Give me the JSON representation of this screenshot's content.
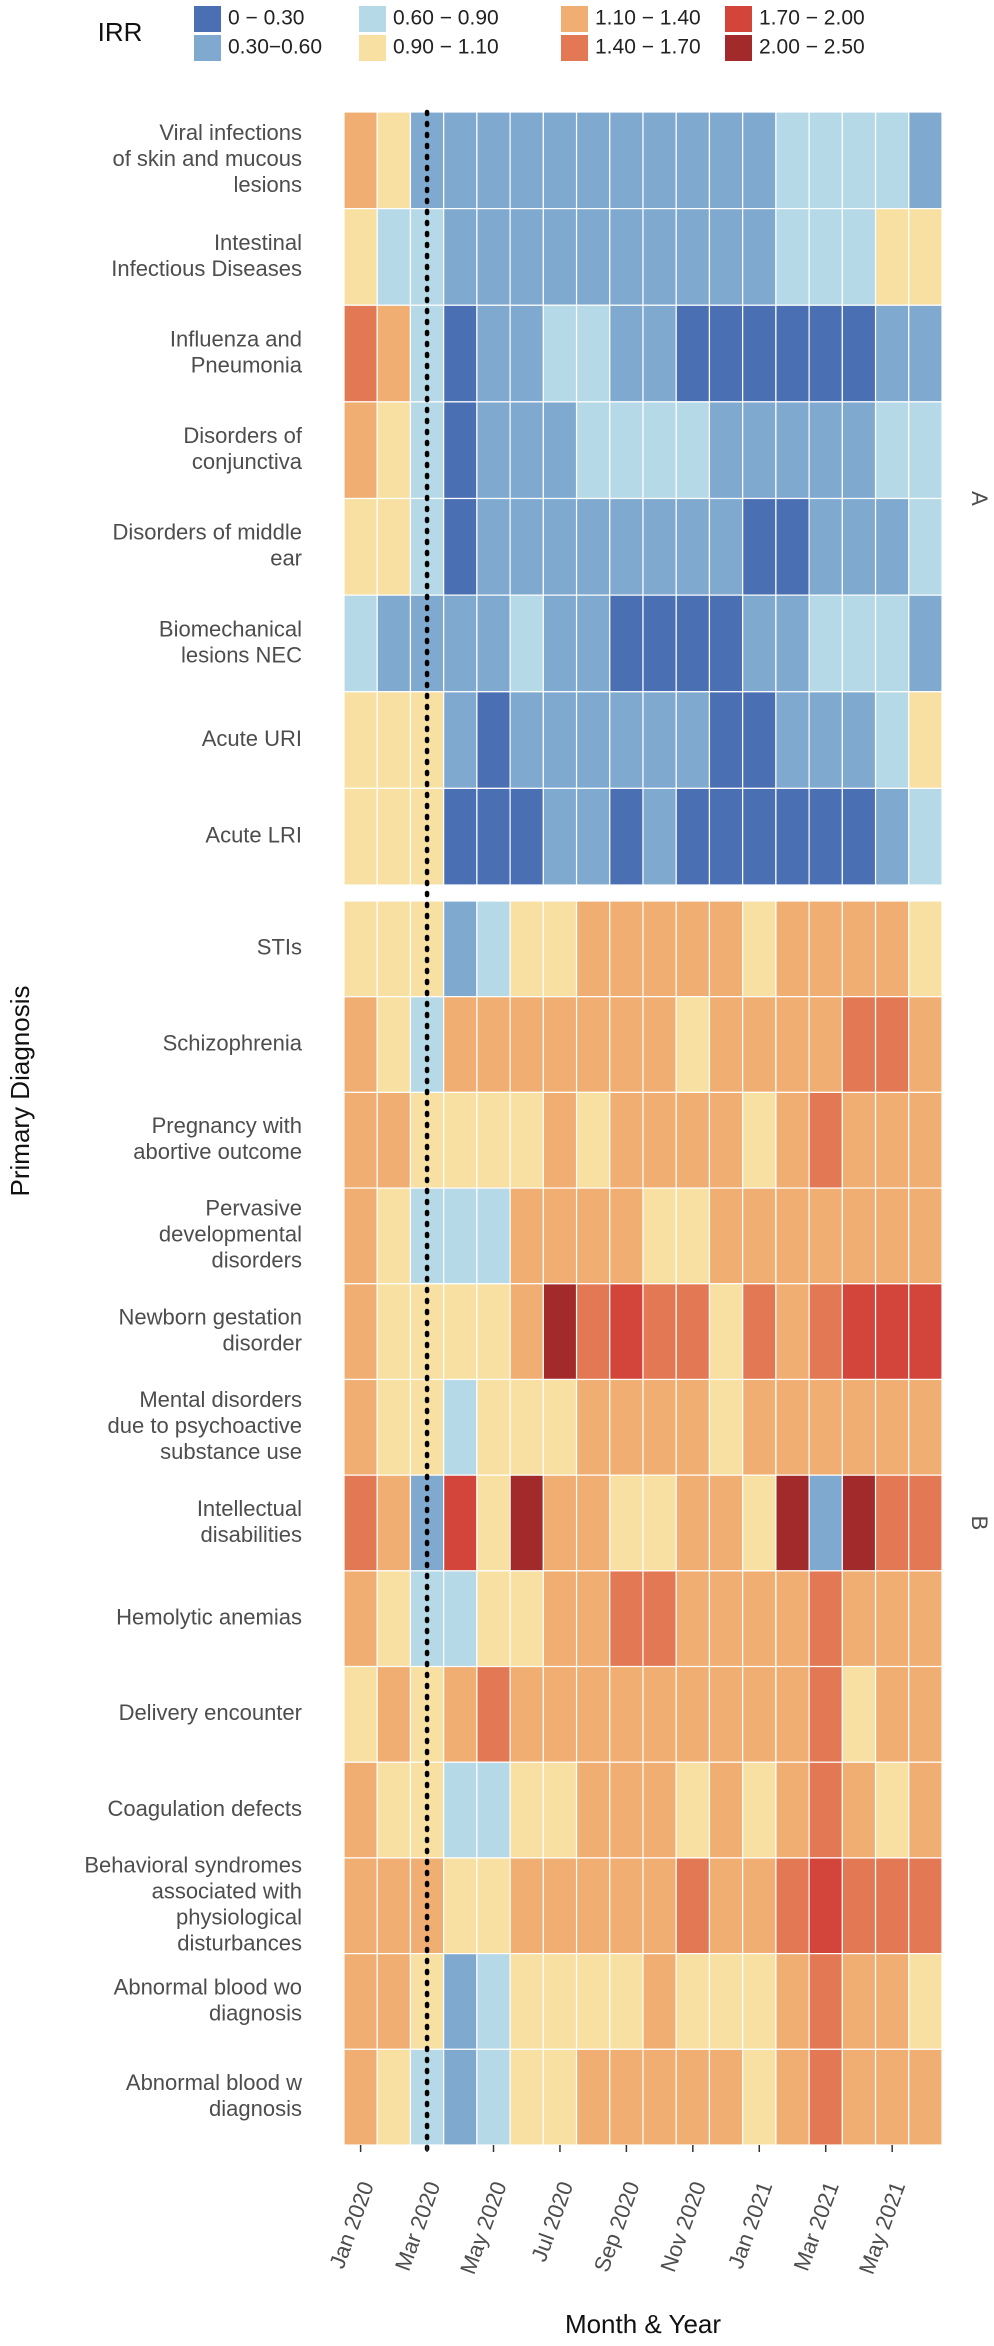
{
  "chart_data": {
    "type": "heatmap",
    "x_label": "Month & Year",
    "y_label": "Primary Diagnosis",
    "legend_title": "IRR",
    "legend": [
      {
        "label": "0 − 0.30",
        "range": [
          0,
          0.3
        ],
        "color": "#4a6fb3"
      },
      {
        "label": "0.30−0.60",
        "range": [
          0.3,
          0.6
        ],
        "color": "#80a9cf"
      },
      {
        "label": "0.60 − 0.90",
        "range": [
          0.6,
          0.9
        ],
        "color": "#b6d9e8"
      },
      {
        "label": "0.90 − 1.10",
        "range": [
          0.9,
          1.1
        ],
        "color": "#f7e0a2"
      },
      {
        "label": "1.10 − 1.40",
        "range": [
          1.1,
          1.4
        ],
        "color": "#f0ae72"
      },
      {
        "label": "1.40 − 1.70",
        "range": [
          1.4,
          1.7
        ],
        "color": "#e37855"
      },
      {
        "label": "1.70 − 2.00",
        "range": [
          1.7,
          2.0
        ],
        "color": "#d3443a"
      },
      {
        "label": "2.00 − 2.50",
        "range": [
          2.0,
          2.5
        ],
        "color": "#a22a2b"
      }
    ],
    "categories": [
      "Jan 2020",
      null,
      "Mar 2020",
      null,
      "May 2020",
      null,
      "Jul 2020",
      null,
      "Sep 2020",
      null,
      "Nov 2020",
      null,
      "Jan 2021",
      null,
      "Mar 2021",
      null,
      "May 2021",
      null
    ],
    "vline_category_index": 2,
    "panels": [
      {
        "strip": "A",
        "rows": [
          {
            "label": [
              "Viral infections",
              "of skin and mucous",
              "lesions"
            ],
            "values": [
              1.25,
              1.0,
              0.45,
              0.45,
              0.45,
              0.45,
              0.45,
              0.45,
              0.45,
              0.45,
              0.45,
              0.45,
              0.45,
              0.75,
              0.75,
              0.75,
              0.75,
              0.45
            ]
          },
          {
            "label": [
              "Intestinal",
              "Infectious Diseases"
            ],
            "values": [
              1.0,
              0.75,
              0.75,
              0.45,
              0.45,
              0.45,
              0.45,
              0.45,
              0.45,
              0.45,
              0.45,
              0.45,
              0.45,
              0.75,
              0.75,
              0.75,
              1.0,
              1.0
            ]
          },
          {
            "label": [
              "Influenza and",
              "Pneumonia"
            ],
            "values": [
              1.55,
              1.25,
              0.75,
              0.15,
              0.45,
              0.45,
              0.75,
              0.75,
              0.45,
              0.45,
              0.15,
              0.15,
              0.15,
              0.15,
              0.15,
              0.15,
              0.45,
              0.45
            ]
          },
          {
            "label": [
              "Disorders of",
              "conjunctiva"
            ],
            "values": [
              1.25,
              1.0,
              0.75,
              0.15,
              0.45,
              0.45,
              0.45,
              0.75,
              0.75,
              0.75,
              0.75,
              0.45,
              0.45,
              0.45,
              0.45,
              0.45,
              0.75,
              0.75
            ]
          },
          {
            "label": [
              "Disorders of middle",
              "ear"
            ],
            "values": [
              1.0,
              1.0,
              0.75,
              0.15,
              0.45,
              0.45,
              0.45,
              0.45,
              0.45,
              0.45,
              0.45,
              0.45,
              0.15,
              0.15,
              0.45,
              0.45,
              0.45,
              0.75
            ]
          },
          {
            "label": [
              "Biomechanical",
              "lesions NEC"
            ],
            "values": [
              0.75,
              0.45,
              0.45,
              0.45,
              0.45,
              0.75,
              0.45,
              0.45,
              0.15,
              0.15,
              0.15,
              0.15,
              0.45,
              0.45,
              0.75,
              0.75,
              0.75,
              0.45
            ]
          },
          {
            "label": [
              "Acute URI"
            ],
            "values": [
              1.0,
              1.0,
              1.0,
              0.45,
              0.15,
              0.45,
              0.45,
              0.45,
              0.45,
              0.45,
              0.45,
              0.15,
              0.15,
              0.45,
              0.45,
              0.45,
              0.75,
              1.0
            ]
          },
          {
            "label": [
              "Acute LRI"
            ],
            "values": [
              1.0,
              1.0,
              1.0,
              0.15,
              0.15,
              0.15,
              0.45,
              0.45,
              0.15,
              0.45,
              0.15,
              0.15,
              0.15,
              0.15,
              0.15,
              0.15,
              0.45,
              0.75
            ]
          }
        ]
      },
      {
        "strip": "B",
        "rows": [
          {
            "label": [
              "STIs"
            ],
            "values": [
              1.0,
              1.0,
              1.0,
              0.45,
              0.75,
              1.0,
              1.0,
              1.25,
              1.25,
              1.25,
              1.25,
              1.25,
              1.0,
              1.25,
              1.25,
              1.25,
              1.25,
              1.0
            ]
          },
          {
            "label": [
              "Schizophrenia"
            ],
            "values": [
              1.25,
              1.0,
              0.75,
              1.25,
              1.25,
              1.25,
              1.25,
              1.25,
              1.25,
              1.25,
              1.0,
              1.25,
              1.25,
              1.25,
              1.25,
              1.55,
              1.55,
              1.25
            ]
          },
          {
            "label": [
              "Pregnancy with",
              "abortive outcome"
            ],
            "values": [
              1.25,
              1.25,
              1.0,
              1.0,
              1.0,
              1.0,
              1.25,
              1.0,
              1.25,
              1.25,
              1.25,
              1.25,
              1.0,
              1.25,
              1.55,
              1.25,
              1.25,
              1.25
            ]
          },
          {
            "label": [
              "Pervasive",
              "developmental",
              "disorders"
            ],
            "values": [
              1.25,
              1.0,
              0.75,
              0.75,
              0.75,
              1.25,
              1.25,
              1.25,
              1.25,
              1.0,
              1.0,
              1.25,
              1.25,
              1.25,
              1.25,
              1.25,
              1.25,
              1.25
            ]
          },
          {
            "label": [
              "Newborn gestation",
              "disorder"
            ],
            "values": [
              1.25,
              1.0,
              1.0,
              1.0,
              1.0,
              1.25,
              2.25,
              1.55,
              1.85,
              1.55,
              1.55,
              1.0,
              1.55,
              1.25,
              1.55,
              1.85,
              1.85,
              1.85
            ]
          },
          {
            "label": [
              "Mental disorders",
              "due to psychoactive",
              "substance use"
            ],
            "values": [
              1.25,
              1.0,
              1.0,
              0.75,
              1.0,
              1.0,
              1.0,
              1.25,
              1.25,
              1.25,
              1.25,
              1.0,
              1.25,
              1.25,
              1.25,
              1.25,
              1.25,
              1.25
            ]
          },
          {
            "label": [
              "Intellectual",
              "disabilities"
            ],
            "values": [
              1.55,
              1.25,
              0.45,
              1.85,
              1.0,
              2.25,
              1.25,
              1.25,
              1.0,
              1.0,
              1.25,
              1.25,
              1.0,
              2.25,
              0.45,
              2.25,
              1.55,
              1.55
            ]
          },
          {
            "label": [
              "Hemolytic anemias"
            ],
            "values": [
              1.25,
              1.0,
              0.75,
              0.75,
              1.0,
              1.0,
              1.25,
              1.25,
              1.55,
              1.55,
              1.25,
              1.25,
              1.25,
              1.25,
              1.55,
              1.25,
              1.25,
              1.25
            ]
          },
          {
            "label": [
              "Delivery encounter"
            ],
            "values": [
              1.0,
              1.25,
              1.0,
              1.25,
              1.55,
              1.25,
              1.25,
              1.25,
              1.25,
              1.25,
              1.25,
              1.25,
              1.25,
              1.25,
              1.55,
              1.0,
              1.25,
              1.25
            ]
          },
          {
            "label": [
              "Coagulation defects"
            ],
            "values": [
              1.25,
              1.0,
              1.0,
              0.75,
              0.75,
              1.0,
              1.0,
              1.25,
              1.25,
              1.25,
              1.0,
              1.25,
              1.0,
              1.25,
              1.55,
              1.25,
              1.0,
              1.25
            ]
          },
          {
            "label": [
              "Behavioral syndromes",
              "associated with",
              "physiological",
              "disturbances"
            ],
            "values": [
              1.25,
              1.25,
              1.25,
              1.0,
              1.0,
              1.25,
              1.25,
              1.25,
              1.25,
              1.25,
              1.55,
              1.25,
              1.25,
              1.55,
              1.85,
              1.55,
              1.55,
              1.55
            ]
          },
          {
            "label": [
              "Abnormal blood wo",
              "diagnosis"
            ],
            "values": [
              1.25,
              1.25,
              1.0,
              0.45,
              0.75,
              1.0,
              1.0,
              1.0,
              1.0,
              1.25,
              1.0,
              1.0,
              1.0,
              1.25,
              1.55,
              1.25,
              1.25,
              1.0
            ]
          },
          {
            "label": [
              "Abnormal blood w",
              "diagnosis"
            ],
            "values": [
              1.25,
              1.0,
              0.75,
              0.45,
              0.75,
              1.0,
              1.0,
              1.25,
              1.25,
              1.25,
              1.25,
              1.25,
              1.0,
              1.25,
              1.55,
              1.25,
              1.25,
              1.25
            ]
          }
        ]
      }
    ]
  }
}
